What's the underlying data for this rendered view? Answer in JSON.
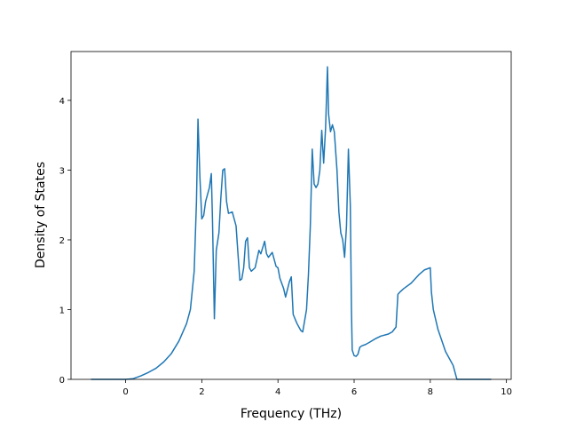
{
  "chart_data": {
    "type": "line",
    "xlabel": "Frequency (THz)",
    "ylabel": "Density of States",
    "xlim": [
      -1.435,
      10.125
    ],
    "ylim": [
      0,
      4.7
    ],
    "xticks": [
      0,
      2,
      4,
      6,
      8,
      10
    ],
    "yticks": [
      0,
      1,
      2,
      3,
      4
    ],
    "x": [
      -0.91,
      0,
      0.2,
      0.4,
      0.6,
      0.8,
      1.0,
      1.2,
      1.4,
      1.6,
      1.7,
      1.8,
      1.86,
      1.9,
      1.95,
      2.0,
      2.05,
      2.1,
      2.2,
      2.25,
      2.28,
      2.33,
      2.38,
      2.45,
      2.5,
      2.55,
      2.6,
      2.65,
      2.7,
      2.8,
      2.9,
      2.95,
      3.0,
      3.05,
      3.1,
      3.15,
      3.2,
      3.25,
      3.3,
      3.4,
      3.5,
      3.55,
      3.65,
      3.7,
      3.75,
      3.85,
      3.95,
      4.0,
      4.05,
      4.15,
      4.2,
      4.3,
      4.35,
      4.4,
      4.5,
      4.6,
      4.65,
      4.75,
      4.8,
      4.85,
      4.9,
      4.95,
      5.0,
      5.05,
      5.1,
      5.15,
      5.2,
      5.25,
      5.3,
      5.33,
      5.38,
      5.43,
      5.48,
      5.55,
      5.6,
      5.65,
      5.7,
      5.75,
      5.8,
      5.85,
      5.9,
      5.93,
      5.95,
      6.0,
      6.05,
      6.1,
      6.15,
      6.2,
      6.3,
      6.4,
      6.55,
      6.7,
      6.9,
      7.0,
      7.1,
      7.15,
      7.2,
      7.3,
      7.5,
      7.7,
      7.85,
      8.0,
      8.03,
      8.08,
      8.2,
      8.4,
      8.6,
      8.7,
      8.75,
      9.0,
      9.6
    ],
    "series": [
      {
        "color": "#1f77b4",
        "values": [
          0,
          0,
          0.01,
          0.05,
          0.1,
          0.16,
          0.25,
          0.37,
          0.55,
          0.8,
          1.0,
          1.55,
          2.55,
          3.73,
          2.9,
          2.3,
          2.35,
          2.55,
          2.75,
          2.95,
          2.3,
          0.87,
          1.85,
          2.1,
          2.6,
          3.0,
          3.02,
          2.55,
          2.38,
          2.4,
          2.2,
          1.8,
          1.42,
          1.44,
          1.6,
          1.98,
          2.03,
          1.6,
          1.55,
          1.6,
          1.85,
          1.8,
          1.98,
          1.8,
          1.75,
          1.82,
          1.62,
          1.6,
          1.45,
          1.3,
          1.18,
          1.4,
          1.47,
          0.93,
          0.8,
          0.7,
          0.68,
          1.0,
          1.5,
          2.2,
          3.3,
          2.8,
          2.75,
          2.8,
          3.0,
          3.57,
          3.1,
          3.6,
          4.48,
          3.8,
          3.55,
          3.65,
          3.55,
          3.0,
          2.4,
          2.1,
          2.0,
          1.75,
          2.2,
          3.3,
          2.5,
          1.0,
          0.42,
          0.34,
          0.33,
          0.36,
          0.46,
          0.48,
          0.5,
          0.53,
          0.58,
          0.62,
          0.65,
          0.68,
          0.75,
          1.22,
          1.25,
          1.3,
          1.38,
          1.5,
          1.57,
          1.6,
          1.25,
          1.0,
          0.72,
          0.4,
          0.2,
          0,
          0,
          0,
          0
        ]
      }
    ]
  }
}
